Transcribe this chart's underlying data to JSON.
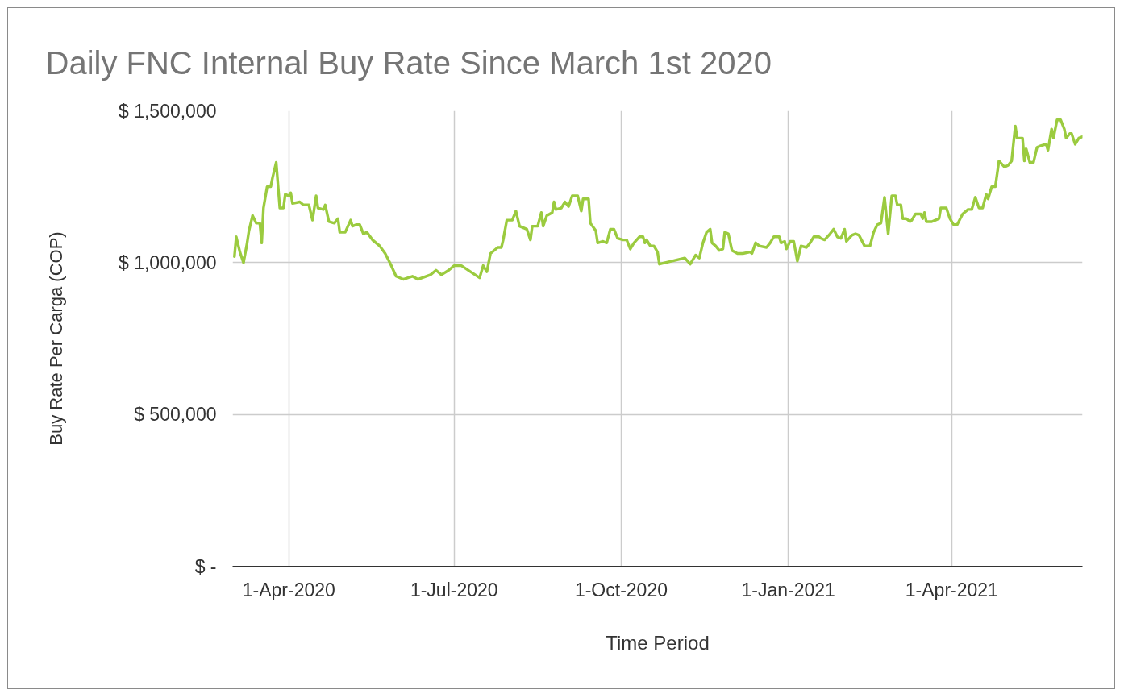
{
  "chart_data": {
    "type": "line",
    "title": "Daily FNC Internal Buy Rate Since March 1st 2020",
    "xlabel": "Time Period",
    "ylabel": "Buy Rate Per Carga (COP)",
    "x": [
      "2020-03-02",
      "2020-03-03",
      "2020-03-05",
      "2020-03-07",
      "2020-03-09",
      "2020-03-10",
      "2020-03-12",
      "2020-03-14",
      "2020-03-16",
      "2020-03-17",
      "2020-03-18",
      "2020-03-20",
      "2020-03-22",
      "2020-03-23",
      "2020-03-25",
      "2020-03-27",
      "2020-03-29",
      "2020-03-30",
      "2020-04-01",
      "2020-04-02",
      "2020-04-03",
      "2020-04-07",
      "2020-04-09",
      "2020-04-12",
      "2020-04-14",
      "2020-04-16",
      "2020-04-17",
      "2020-04-20",
      "2020-04-21",
      "2020-04-23",
      "2020-04-26",
      "2020-04-28",
      "2020-04-29",
      "2020-05-02",
      "2020-05-05",
      "2020-05-06",
      "2020-05-08",
      "2020-05-10",
      "2020-05-12",
      "2020-05-14",
      "2020-05-17",
      "2020-05-21",
      "2020-05-24",
      "2020-05-27",
      "2020-05-30",
      "2020-06-03",
      "2020-06-08",
      "2020-06-11",
      "2020-06-18",
      "2020-06-21",
      "2020-06-24",
      "2020-06-28",
      "2020-07-01",
      "2020-07-05",
      "2020-07-15",
      "2020-07-17",
      "2020-07-19",
      "2020-07-21",
      "2020-07-25",
      "2020-07-27",
      "2020-07-28",
      "2020-07-30",
      "2020-08-02",
      "2020-08-04",
      "2020-08-06",
      "2020-08-10",
      "2020-08-12",
      "2020-08-13",
      "2020-08-16",
      "2020-08-18",
      "2020-08-19",
      "2020-08-21",
      "2020-08-24",
      "2020-08-25",
      "2020-08-26",
      "2020-08-29",
      "2020-08-31",
      "2020-09-02",
      "2020-09-04",
      "2020-09-07",
      "2020-09-09",
      "2020-09-10",
      "2020-09-13",
      "2020-09-14",
      "2020-09-17",
      "2020-09-18",
      "2020-09-21",
      "2020-09-23",
      "2020-09-25",
      "2020-09-27",
      "2020-09-29",
      "2020-10-02",
      "2020-10-04",
      "2020-10-06",
      "2020-10-08",
      "2020-10-11",
      "2020-10-13",
      "2020-10-14",
      "2020-10-15",
      "2020-10-17",
      "2020-10-19",
      "2020-10-21",
      "2020-10-22",
      "2020-11-05",
      "2020-11-08",
      "2020-11-11",
      "2020-11-13",
      "2020-11-15",
      "2020-11-17",
      "2020-11-19",
      "2020-11-20",
      "2020-11-22",
      "2020-11-24",
      "2020-11-26",
      "2020-11-27",
      "2020-11-29",
      "2020-12-01",
      "2020-12-04",
      "2020-12-07",
      "2020-12-11",
      "2020-12-12",
      "2020-12-14",
      "2020-12-16",
      "2020-12-20",
      "2020-12-22",
      "2020-12-24",
      "2020-12-27",
      "2020-12-28",
      "2020-12-30",
      "2020-12-31",
      "2021-01-02",
      "2021-01-04",
      "2021-01-06",
      "2021-01-08",
      "2021-01-11",
      "2021-01-13",
      "2021-01-15",
      "2021-01-18",
      "2021-01-19",
      "2021-01-21",
      "2021-01-24",
      "2021-01-26",
      "2021-01-28",
      "2021-01-30",
      "2021-02-01",
      "2021-02-02",
      "2021-02-05",
      "2021-02-07",
      "2021-02-09",
      "2021-02-12",
      "2021-02-15",
      "2021-02-17",
      "2021-02-19",
      "2021-02-21",
      "2021-02-23",
      "2021-02-25",
      "2021-02-27",
      "2021-03-01",
      "2021-03-02",
      "2021-03-04",
      "2021-03-05",
      "2021-03-07",
      "2021-03-09",
      "2021-03-10",
      "2021-03-12",
      "2021-03-15",
      "2021-03-16",
      "2021-03-17",
      "2021-03-18",
      "2021-03-21",
      "2021-03-23",
      "2021-03-25",
      "2021-03-26",
      "2021-03-29",
      "2021-03-31",
      "2021-04-02",
      "2021-04-04",
      "2021-04-07",
      "2021-04-10",
      "2021-04-12",
      "2021-04-14",
      "2021-04-16",
      "2021-04-18",
      "2021-04-20",
      "2021-04-21",
      "2021-04-23",
      "2021-04-25",
      "2021-04-27",
      "2021-04-30",
      "2021-05-02",
      "2021-05-04",
      "2021-05-06",
      "2021-05-07",
      "2021-05-10",
      "2021-05-11",
      "2021-05-12",
      "2021-05-14",
      "2021-05-16",
      "2021-05-18",
      "2021-05-20",
      "2021-05-23",
      "2021-05-24",
      "2021-05-26",
      "2021-05-27",
      "2021-05-29",
      "2021-05-31",
      "2021-06-02",
      "2021-06-03",
      "2021-06-05",
      "2021-06-06",
      "2021-06-08",
      "2021-06-10",
      "2021-06-12"
    ],
    "series": [
      {
        "color": "#9bcb3f",
        "values": [
          1020000,
          1085000,
          1035000,
          1000000,
          1065000,
          1105000,
          1155000,
          1130000,
          1130000,
          1065000,
          1180000,
          1250000,
          1250000,
          1280000,
          1330000,
          1180000,
          1180000,
          1225000,
          1220000,
          1230000,
          1195000,
          1200000,
          1190000,
          1190000,
          1140000,
          1220000,
          1180000,
          1175000,
          1190000,
          1135000,
          1130000,
          1145000,
          1100000,
          1100000,
          1140000,
          1120000,
          1125000,
          1125000,
          1095000,
          1100000,
          1075000,
          1055000,
          1030000,
          995000,
          955000,
          945000,
          955000,
          945000,
          960000,
          975000,
          960000,
          975000,
          990000,
          990000,
          950000,
          990000,
          970000,
          1030000,
          1050000,
          1050000,
          1075000,
          1140000,
          1140000,
          1170000,
          1120000,
          1110000,
          1075000,
          1120000,
          1120000,
          1165000,
          1120000,
          1155000,
          1165000,
          1200000,
          1175000,
          1180000,
          1200000,
          1185000,
          1220000,
          1220000,
          1170000,
          1210000,
          1210000,
          1130000,
          1105000,
          1065000,
          1070000,
          1065000,
          1110000,
          1110000,
          1080000,
          1075000,
          1075000,
          1045000,
          1065000,
          1085000,
          1085000,
          1065000,
          1075000,
          1055000,
          1055000,
          1035000,
          995000,
          1015000,
          995000,
          1025000,
          1015000,
          1065000,
          1100000,
          1110000,
          1065000,
          1055000,
          1040000,
          1045000,
          1100000,
          1095000,
          1040000,
          1030000,
          1030000,
          1035000,
          1030000,
          1065000,
          1055000,
          1050000,
          1065000,
          1085000,
          1085000,
          1065000,
          1070000,
          1045000,
          1070000,
          1070000,
          1005000,
          1055000,
          1050000,
          1065000,
          1085000,
          1085000,
          1080000,
          1075000,
          1095000,
          1110000,
          1085000,
          1080000,
          1110000,
          1070000,
          1090000,
          1095000,
          1090000,
          1055000,
          1055000,
          1100000,
          1125000,
          1130000,
          1215000,
          1095000,
          1220000,
          1220000,
          1190000,
          1190000,
          1145000,
          1145000,
          1135000,
          1140000,
          1160000,
          1160000,
          1145000,
          1165000,
          1135000,
          1135000,
          1140000,
          1145000,
          1180000,
          1180000,
          1145000,
          1125000,
          1125000,
          1160000,
          1175000,
          1175000,
          1215000,
          1180000,
          1180000,
          1225000,
          1210000,
          1250000,
          1250000,
          1335000,
          1315000,
          1320000,
          1335000,
          1450000,
          1410000,
          1410000,
          1335000,
          1375000,
          1330000,
          1330000,
          1380000,
          1385000,
          1390000,
          1370000,
          1440000,
          1410000,
          1470000,
          1470000,
          1440000,
          1410000,
          1425000,
          1425000,
          1390000,
          1410000,
          1415000
        ]
      }
    ],
    "xlim": [
      "2020-03-01",
      "2021-06-12"
    ],
    "xticks": [
      {
        "value": "2020-04-01",
        "label": "1-Apr-2020"
      },
      {
        "value": "2020-07-01",
        "label": "1-Jul-2020"
      },
      {
        "value": "2020-10-01",
        "label": "1-Oct-2020"
      },
      {
        "value": "2021-01-01",
        "label": "1-Jan-2021"
      },
      {
        "value": "2021-04-01",
        "label": "1-Apr-2021"
      }
    ],
    "ylim": [
      0,
      1500000
    ],
    "yticks": [
      {
        "value": 0,
        "label": "$ -"
      },
      {
        "value": 500000,
        "label": "$ 500,000"
      },
      {
        "value": 1000000,
        "label": "$ 1,000,000"
      },
      {
        "value": 1500000,
        "label": "$ 1,500,000"
      }
    ],
    "grid": true
  }
}
